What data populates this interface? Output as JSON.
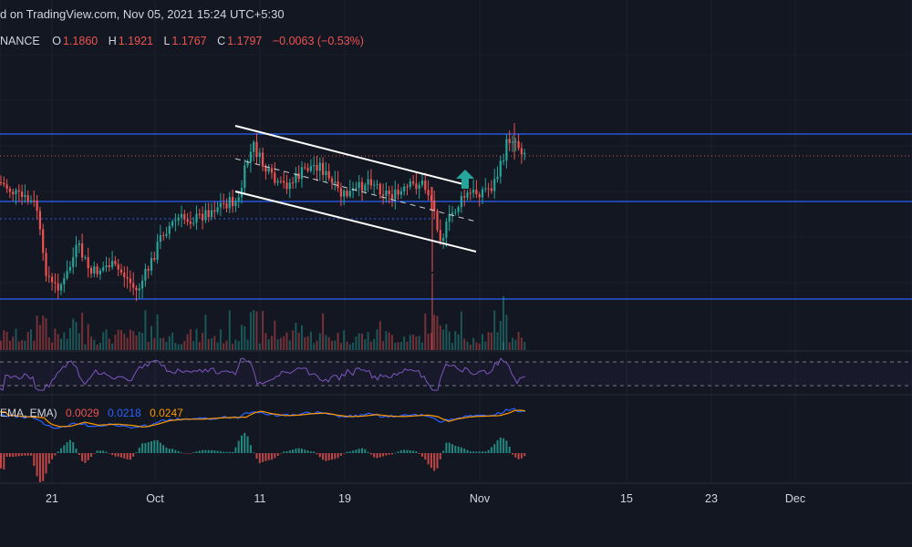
{
  "header": {
    "published_text": "d on TradingView.com, Nov 05, 2021 15:24 UTC+5:30",
    "exchange": "NANCE",
    "open_label": "O",
    "open_value": "1.1860",
    "high_label": "H",
    "high_value": "1.1921",
    "low_label": "L",
    "low_value": "1.1767",
    "close_label": "C",
    "close_value": "1.1797",
    "change_text": "−0.0063 (−0.53%)"
  },
  "macd_legend": {
    "label": "EMA, EMA)",
    "value1": "0.0029",
    "value2": "0.0218",
    "value3": "0.0247"
  },
  "colors": {
    "background": "#131722",
    "up": "#26a69a",
    "down": "#ef5350",
    "level_line": "#2962ff",
    "rsi": "#7e57c2",
    "macd_line": "#2962ff",
    "signal_line": "#ff9800",
    "channel": "#ffffff",
    "arrow": "#26a69a"
  },
  "chart_data": {
    "type": "candlestick",
    "x_axis_ticks": [
      "21",
      "Oct",
      "11",
      "19",
      "Nov",
      "15",
      "23",
      "Dec"
    ],
    "price_panel": {
      "last_close": 1.1797,
      "horizontal_levels": [
        "resistance",
        "support-mid",
        "support-low"
      ],
      "patterns": [
        "descending channel",
        "breakout arrow"
      ]
    },
    "indicators": [
      "volume",
      "RSI",
      "MACD"
    ]
  }
}
